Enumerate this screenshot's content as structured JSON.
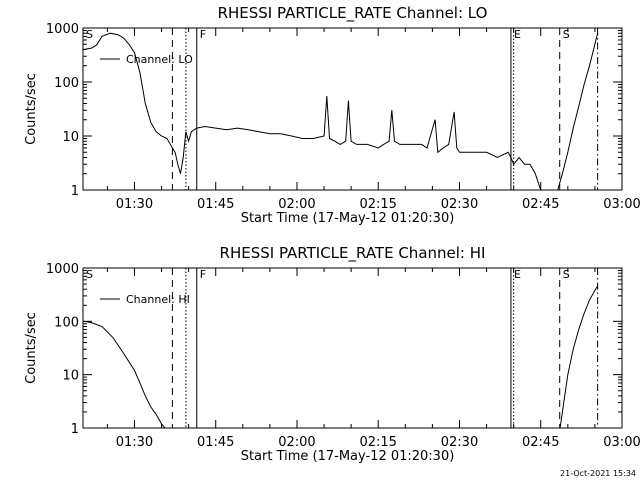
{
  "chart_data": [
    {
      "type": "line",
      "title": "RHESSI PARTICLE_RATE Channel: LO",
      "xlabel": "Start Time (17-May-12 01:20:30)",
      "ylabel": "Counts/sec",
      "yscale": "log",
      "ylim": [
        1,
        1000
      ],
      "xlim": [
        "01:20:30",
        "03:00:00"
      ],
      "xticks": [
        "01:30",
        "01:45",
        "02:00",
        "02:15",
        "02:30",
        "02:45",
        "03:00"
      ],
      "yticks": [
        "1",
        "10",
        "100",
        "1000"
      ],
      "legend": "Channel: LO",
      "legend_position": "top-left",
      "markers": [
        {
          "label": "S",
          "time": "01:20:30",
          "style": "dashdot"
        },
        {
          "label": "",
          "time": "01:37:00",
          "style": "dashed"
        },
        {
          "label": "",
          "time": "01:39:30",
          "style": "dotted"
        },
        {
          "label": "F",
          "time": "01:41:30",
          "style": "solid"
        },
        {
          "label": "E",
          "time": "02:39:30",
          "style": "solid"
        },
        {
          "label": "",
          "time": "02:40:00",
          "style": "dotted"
        },
        {
          "label": "S",
          "time": "02:48:30",
          "style": "dashed"
        },
        {
          "label": "",
          "time": "02:55:30",
          "style": "dashdot"
        }
      ],
      "series": [
        {
          "name": "Channel: LO",
          "x": [
            "01:20:30",
            "01:22:00",
            "01:23:00",
            "01:24:00",
            "01:25:30",
            "01:27:00",
            "01:28:00",
            "01:29:00",
            "01:30:00",
            "01:31:00",
            "01:32:00",
            "01:33:00",
            "01:34:00",
            "01:35:00",
            "01:36:00",
            "01:37:00",
            "01:37:30",
            "01:38:00",
            "01:38:30",
            "01:39:00",
            "01:39:30",
            "01:40:00",
            "01:40:30",
            "01:41:30",
            "01:43:00",
            "01:45:00",
            "01:47:00",
            "01:49:00",
            "01:51:00",
            "01:53:00",
            "01:55:00",
            "01:57:00",
            "01:59:00",
            "02:01:00",
            "02:03:00",
            "02:05:00",
            "02:05:30",
            "02:06:00",
            "02:07:00",
            "02:08:00",
            "02:09:00",
            "02:09:30",
            "02:10:00",
            "02:11:00",
            "02:13:00",
            "02:15:00",
            "02:16:00",
            "02:17:00",
            "02:17:30",
            "02:18:00",
            "02:19:00",
            "02:21:00",
            "02:23:00",
            "02:24:00",
            "02:25:30",
            "02:26:00",
            "02:27:00",
            "02:28:00",
            "02:29:00",
            "02:29:30",
            "02:30:00",
            "02:31:00",
            "02:32:00",
            "02:33:00",
            "02:35:00",
            "02:37:00",
            "02:39:00",
            "02:39:30",
            "02:40:00",
            "02:41:00",
            "02:42:00",
            "02:43:00",
            "02:44:00",
            "02:45:00",
            "02:46:00",
            "02:47:00",
            "02:48:00",
            "02:49:00",
            "02:50:00",
            "02:51:00",
            "02:52:00",
            "02:53:00",
            "02:54:00",
            "02:55:00",
            "02:55:30"
          ],
          "y": [
            400,
            420,
            480,
            700,
            800,
            750,
            650,
            500,
            350,
            150,
            40,
            18,
            12,
            10,
            9,
            6,
            5,
            3,
            2,
            4,
            12,
            8,
            12,
            14,
            15,
            14,
            13,
            14,
            13,
            12,
            11,
            11,
            10,
            9,
            9,
            10,
            55,
            9,
            8,
            7,
            8,
            45,
            8,
            7,
            7,
            6,
            7,
            8,
            30,
            8,
            7,
            7,
            7,
            6,
            20,
            5,
            6,
            7,
            28,
            6,
            5,
            5,
            5,
            5,
            5,
            4,
            5,
            4,
            3,
            4,
            3,
            3,
            2,
            1,
            0.9,
            0.9,
            0.9,
            2,
            5,
            14,
            35,
            90,
            200,
            500,
            800
          ]
        }
      ]
    },
    {
      "type": "line",
      "title": "RHESSI PARTICLE_RATE Channel: HI",
      "xlabel": "Start Time (17-May-12 01:20:30)",
      "ylabel": "Counts/sec",
      "yscale": "log",
      "ylim": [
        1,
        1000
      ],
      "xlim": [
        "01:20:30",
        "03:00:00"
      ],
      "xticks": [
        "01:30",
        "01:45",
        "02:00",
        "02:15",
        "02:30",
        "02:45",
        "03:00"
      ],
      "yticks": [
        "1",
        "10",
        "100",
        "1000"
      ],
      "legend": "Channel: HI",
      "legend_position": "top-left",
      "markers": [
        {
          "label": "S",
          "time": "01:20:30",
          "style": "dashdot"
        },
        {
          "label": "",
          "time": "01:37:00",
          "style": "dashed"
        },
        {
          "label": "",
          "time": "01:39:30",
          "style": "dotted"
        },
        {
          "label": "F",
          "time": "01:41:30",
          "style": "solid"
        },
        {
          "label": "E",
          "time": "02:39:30",
          "style": "solid"
        },
        {
          "label": "",
          "time": "02:40:00",
          "style": "dotted"
        },
        {
          "label": "S",
          "time": "02:48:30",
          "style": "dashed"
        },
        {
          "label": "",
          "time": "02:55:30",
          "style": "dashdot"
        }
      ],
      "series": [
        {
          "name": "Channel: HI",
          "x": [
            "01:20:30",
            "01:22:00",
            "01:24:00",
            "01:26:00",
            "01:28:00",
            "01:30:00",
            "01:31:00",
            "01:32:00",
            "01:33:00",
            "01:34:00",
            "01:35:00",
            "01:36:00",
            "02:48:30",
            "02:49:00",
            "02:50:00",
            "02:51:00",
            "02:52:00",
            "02:53:00",
            "02:54:00",
            "02:55:00",
            "02:55:30"
          ],
          "y": [
            100,
            95,
            80,
            50,
            25,
            12,
            7,
            4,
            2.5,
            1.8,
            1.2,
            0.9,
            0.9,
            2,
            10,
            30,
            70,
            140,
            250,
            380,
            460
          ]
        }
      ]
    }
  ],
  "footer_date": "21-Oct-2021 15:34"
}
